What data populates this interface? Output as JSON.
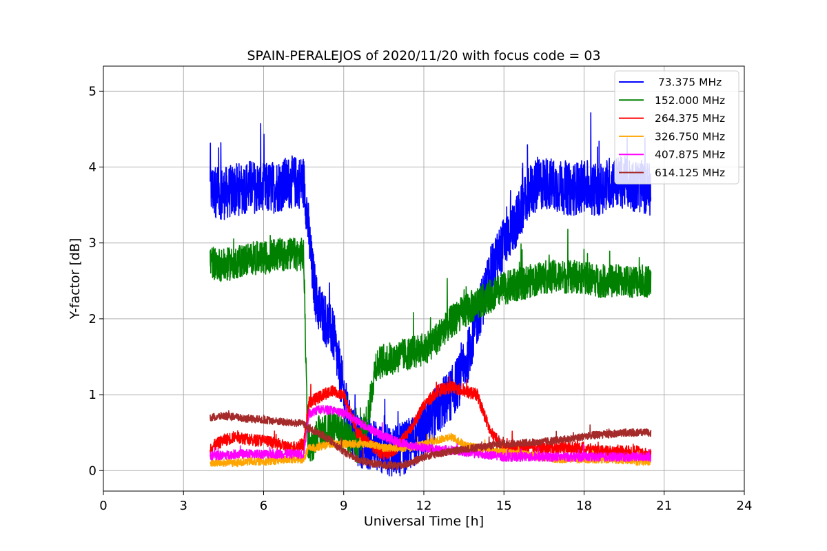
{
  "chart_data": {
    "type": "line",
    "title": "SPAIN-PERALEJOS of 2020/11/20 with focus code = 03",
    "xlabel": "Universal Time [h]",
    "ylabel": "Y-factor [dB]",
    "xlim": [
      0,
      24
    ],
    "ylim": [
      -0.27,
      5.33
    ],
    "xticks": [
      0,
      3,
      6,
      9,
      12,
      15,
      18,
      21,
      24
    ],
    "yticks": [
      0,
      1,
      2,
      3,
      4,
      5
    ],
    "grid": true,
    "legend_position": "top-right",
    "series": [
      {
        "name": " 73.375 MHz",
        "color": "#0000ff",
        "x": [
          4.0,
          4.5,
          5.0,
          5.5,
          6.0,
          6.5,
          7.0,
          7.5,
          7.6,
          7.8,
          8.0,
          8.3,
          8.6,
          8.9,
          9.2,
          9.5,
          10.0,
          10.5,
          11.0,
          11.5,
          12.0,
          12.5,
          13.0,
          13.5,
          14.0,
          14.5,
          15.0,
          15.5,
          16.0,
          16.5,
          17.0,
          17.5,
          18.0,
          18.5,
          19.0,
          19.5,
          20.0,
          20.5
        ],
        "y": [
          3.7,
          3.65,
          3.7,
          3.75,
          3.7,
          3.75,
          3.8,
          3.8,
          3.5,
          2.7,
          2.2,
          2.0,
          1.8,
          1.2,
          0.6,
          0.4,
          0.35,
          0.3,
          0.25,
          0.35,
          0.5,
          0.8,
          1.0,
          1.3,
          2.0,
          2.6,
          3.0,
          3.3,
          3.7,
          3.8,
          3.75,
          3.7,
          3.75,
          3.7,
          3.8,
          3.8,
          3.75,
          3.7
        ]
      },
      {
        "name": "152.000 MHz",
        "color": "#008000",
        "x": [
          4.0,
          4.5,
          5.0,
          5.5,
          6.0,
          6.5,
          7.0,
          7.5,
          7.65,
          7.8,
          8.0,
          8.5,
          9.0,
          9.5,
          9.9,
          10.2,
          10.5,
          11.0,
          11.5,
          12.0,
          12.5,
          13.0,
          13.5,
          14.0,
          14.5,
          15.0,
          15.5,
          16.0,
          16.5,
          17.0,
          17.5,
          18.0,
          18.5,
          19.0,
          19.5,
          20.0,
          20.5
        ],
        "y": [
          2.75,
          2.7,
          2.75,
          2.8,
          2.8,
          2.85,
          2.85,
          2.85,
          0.4,
          0.3,
          0.5,
          0.55,
          0.5,
          0.3,
          0.7,
          1.4,
          1.45,
          1.5,
          1.55,
          1.6,
          1.75,
          1.95,
          2.1,
          2.2,
          2.3,
          2.4,
          2.45,
          2.5,
          2.55,
          2.55,
          2.55,
          2.55,
          2.5,
          2.5,
          2.5,
          2.5,
          2.5
        ]
      },
      {
        "name": "264.375 MHz",
        "color": "#ff0000",
        "x": [
          4.0,
          4.5,
          5.0,
          5.5,
          6.0,
          6.5,
          7.0,
          7.5,
          7.7,
          8.0,
          8.5,
          9.0,
          9.5,
          10.0,
          10.5,
          11.0,
          11.5,
          12.0,
          12.5,
          13.0,
          13.5,
          14.0,
          14.5,
          15.0,
          15.5,
          16.0,
          16.5,
          17.0,
          17.5,
          18.0,
          18.5,
          19.0,
          19.5,
          20.0,
          20.5
        ],
        "y": [
          0.3,
          0.4,
          0.45,
          0.4,
          0.4,
          0.35,
          0.3,
          0.35,
          0.9,
          0.95,
          1.05,
          1.0,
          0.5,
          0.35,
          0.2,
          0.3,
          0.55,
          0.85,
          1.05,
          1.1,
          1.05,
          1.0,
          0.5,
          0.3,
          0.3,
          0.3,
          0.3,
          0.3,
          0.3,
          0.3,
          0.25,
          0.25,
          0.25,
          0.25,
          0.2
        ]
      },
      {
        "name": "326.750 MHz",
        "color": "#ffa500",
        "x": [
          4.0,
          4.5,
          5.0,
          5.5,
          6.0,
          6.5,
          7.0,
          7.5,
          7.7,
          8.0,
          8.5,
          9.0,
          9.5,
          10.0,
          10.5,
          11.0,
          11.5,
          12.0,
          12.5,
          13.0,
          13.5,
          14.0,
          15.0,
          16.0,
          17.0,
          18.0,
          19.0,
          20.0,
          20.5
        ],
        "y": [
          0.1,
          0.1,
          0.1,
          0.12,
          0.12,
          0.13,
          0.15,
          0.15,
          0.3,
          0.3,
          0.35,
          0.35,
          0.35,
          0.35,
          0.3,
          0.3,
          0.3,
          0.35,
          0.4,
          0.45,
          0.35,
          0.3,
          0.25,
          0.2,
          0.15,
          0.15,
          0.15,
          0.12,
          0.12
        ]
      },
      {
        "name": "407.875 MHz",
        "color": "#ff00ff",
        "x": [
          4.0,
          4.5,
          5.0,
          5.5,
          6.0,
          6.5,
          7.0,
          7.5,
          7.7,
          8.0,
          8.5,
          9.0,
          9.5,
          10.0,
          10.5,
          11.0,
          11.5,
          12.0,
          12.5,
          13.0,
          13.5,
          14.0,
          14.5,
          15.0,
          15.5,
          16.0,
          17.0,
          18.0,
          19.0,
          20.0,
          20.5
        ],
        "y": [
          0.2,
          0.2,
          0.22,
          0.22,
          0.22,
          0.22,
          0.22,
          0.22,
          0.75,
          0.8,
          0.8,
          0.75,
          0.65,
          0.55,
          0.45,
          0.38,
          0.33,
          0.3,
          0.28,
          0.27,
          0.25,
          0.22,
          0.2,
          0.18,
          0.18,
          0.18,
          0.18,
          0.18,
          0.18,
          0.18,
          0.18
        ]
      },
      {
        "name": "614.125 MHz",
        "color": "#a52a2a",
        "x": [
          4.0,
          4.5,
          5.0,
          5.5,
          6.0,
          6.5,
          7.0,
          7.5,
          7.7,
          8.0,
          8.5,
          9.0,
          9.5,
          10.0,
          10.5,
          11.0,
          11.5,
          12.0,
          12.5,
          13.0,
          13.5,
          14.0,
          14.5,
          15.0,
          15.5,
          16.0,
          16.5,
          17.0,
          17.5,
          18.0,
          18.5,
          19.0,
          19.5,
          20.0,
          20.5
        ],
        "y": [
          0.7,
          0.72,
          0.7,
          0.68,
          0.67,
          0.65,
          0.63,
          0.62,
          0.55,
          0.5,
          0.4,
          0.25,
          0.15,
          0.1,
          0.07,
          0.06,
          0.1,
          0.18,
          0.22,
          0.25,
          0.28,
          0.3,
          0.33,
          0.35,
          0.36,
          0.37,
          0.38,
          0.4,
          0.42,
          0.45,
          0.47,
          0.48,
          0.5,
          0.5,
          0.5
        ]
      }
    ]
  }
}
